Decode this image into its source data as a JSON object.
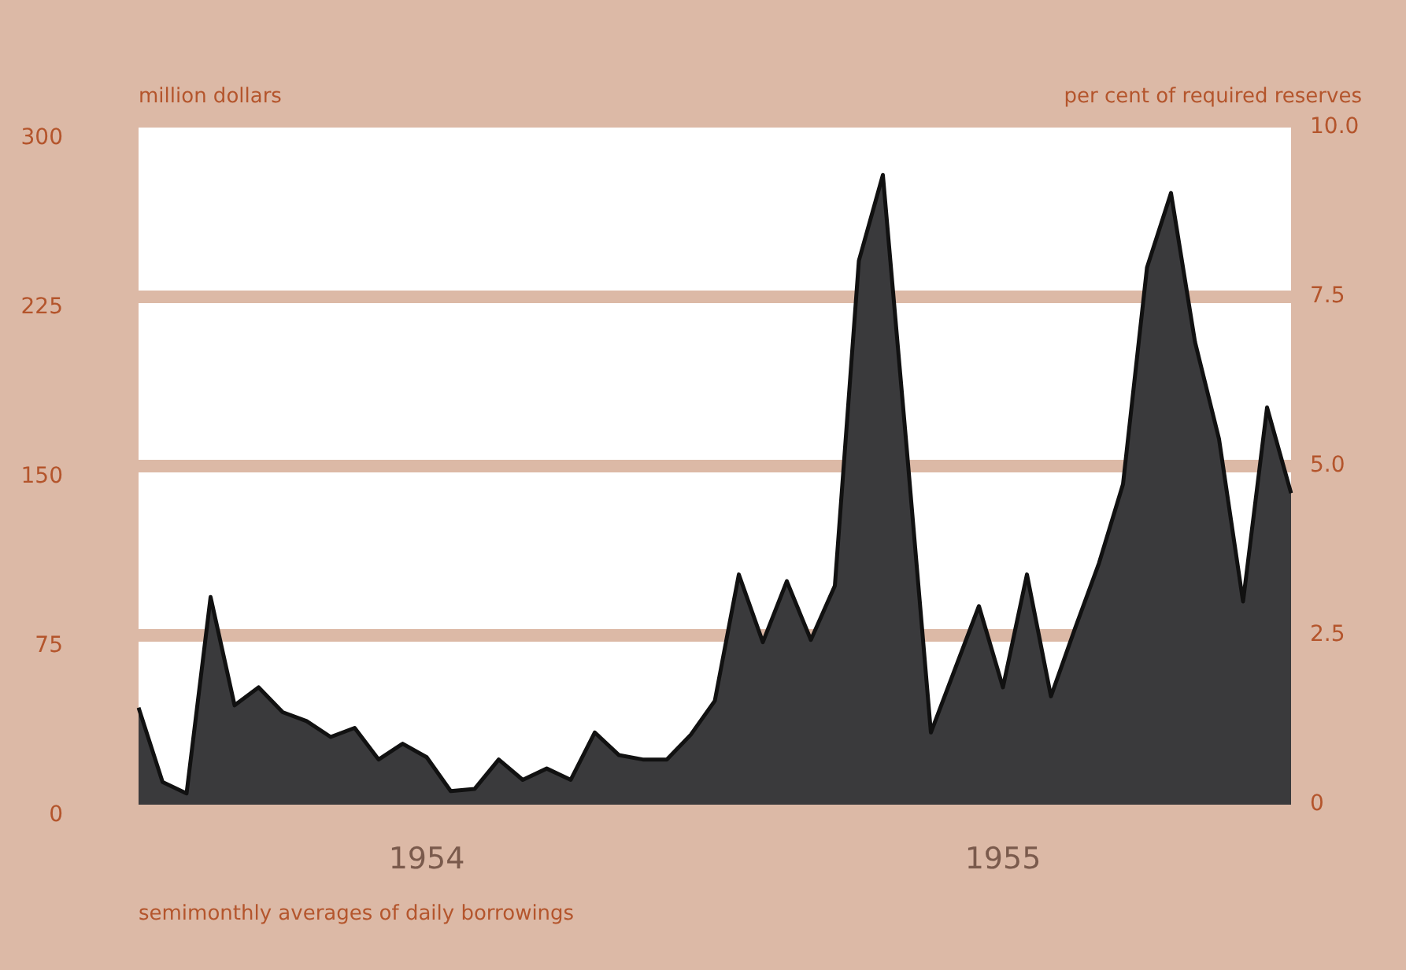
{
  "chart_data": {
    "type": "area",
    "ylabel": "million dollars",
    "y2label": "per cent of required reserves",
    "xlabel": "semimonthly averages of daily borrowings",
    "categories": [
      null,
      null,
      null,
      null,
      null,
      null,
      null,
      null,
      null,
      null,
      null,
      null,
      "1954",
      null,
      null,
      null,
      null,
      null,
      null,
      null,
      null,
      null,
      null,
      null,
      null,
      null,
      null,
      null,
      null,
      null,
      null,
      null,
      null,
      null,
      null,
      null,
      "1955",
      null,
      null,
      null,
      null,
      null,
      null,
      null,
      null,
      null,
      null,
      null,
      null
    ],
    "series": [
      {
        "color": "#3a3a3c",
        "values": [
          43,
          10,
          5,
          92,
          44,
          52,
          41,
          37,
          30,
          34,
          20,
          27,
          21,
          6,
          7,
          20,
          11,
          16,
          11,
          32,
          22,
          20,
          20,
          31,
          46,
          102,
          72,
          99,
          73,
          97,
          241,
          279,
          157,
          32,
          60,
          88,
          52,
          102,
          48,
          78,
          107,
          142,
          238,
          271,
          205,
          162,
          90,
          176,
          138
        ]
      }
    ],
    "ylim": [
      0,
      300
    ],
    "yticks": [
      0,
      75,
      150,
      225,
      300
    ],
    "y2lim": [
      0,
      10
    ],
    "y2ticks": [
      0,
      {
        "value": 2.5,
        "label": "2.5"
      },
      {
        "value": 5,
        "label": "5.0"
      },
      {
        "value": 7.5,
        "label": "7.5"
      },
      {
        "value": 10,
        "label": "10.0"
      }
    ],
    "grid": "y",
    "marker": "none"
  }
}
